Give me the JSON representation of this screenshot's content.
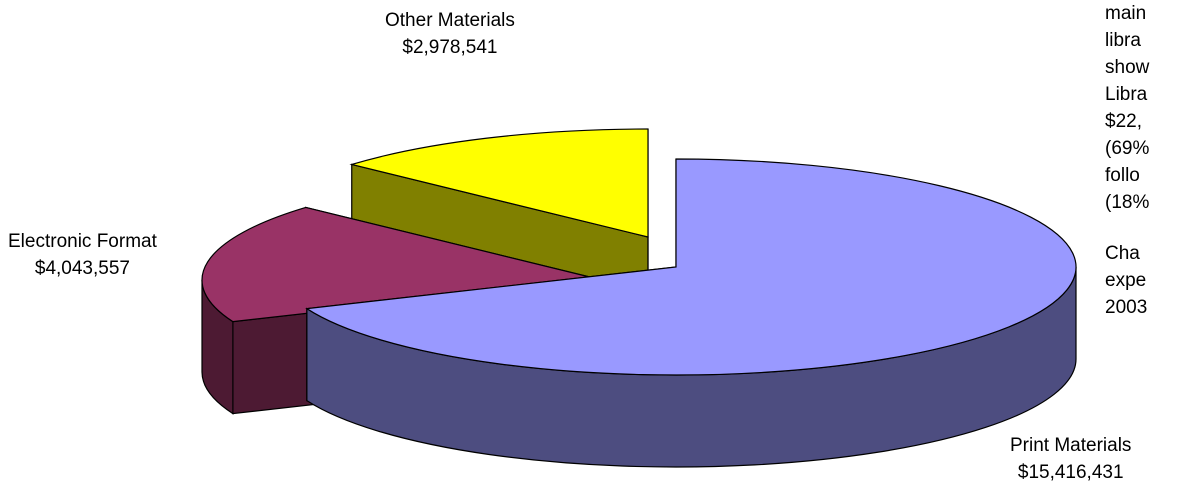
{
  "chart_data": {
    "type": "pie",
    "style": "3d-exploded",
    "slices": [
      {
        "name": "Print Materials",
        "value_label": "$15,416,431",
        "value": 15416431,
        "color": "#9999ff",
        "side_color": "#4d4d80"
      },
      {
        "name": "Electronic Format",
        "value_label": "$4,043,557",
        "value": 4043557,
        "color": "#993366",
        "side_color": "#4d1a33"
      },
      {
        "name": "Other Materials",
        "value_label": "$2,978,541",
        "value": 2978541,
        "color": "#ffff00",
        "side_color": "#808000"
      }
    ]
  },
  "side_text": {
    "lines_a": [
      "main",
      "libra",
      "show",
      "Libra",
      "$22,",
      "(69%",
      "follo",
      "(18%"
    ],
    "lines_b": [
      "Cha",
      "expe",
      "2003"
    ]
  }
}
